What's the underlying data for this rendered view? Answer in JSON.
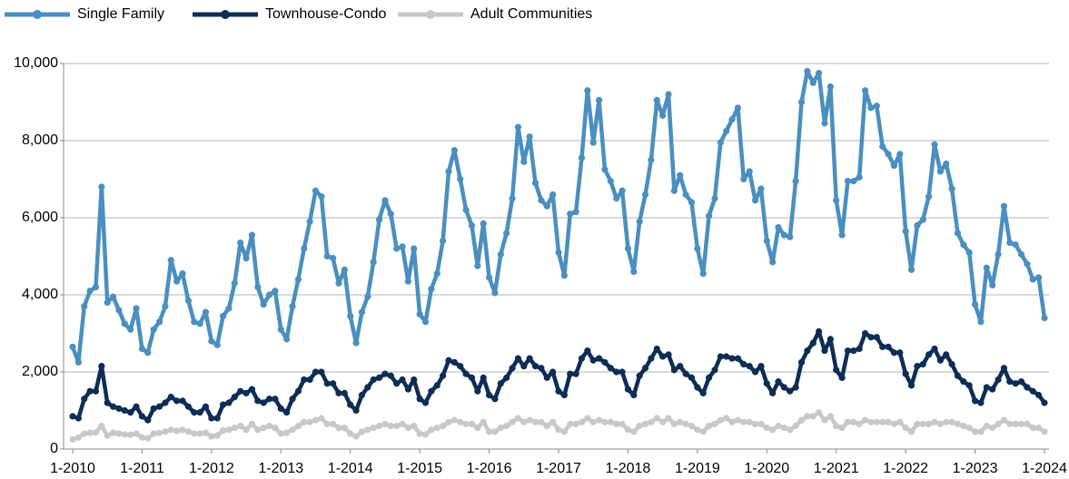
{
  "chart_data": {
    "type": "line",
    "legend": "top",
    "grid": true,
    "categories": [
      "1-2010",
      null,
      null,
      null,
      null,
      null,
      null,
      null,
      null,
      null,
      null,
      null,
      "1-2011",
      null,
      null,
      null,
      null,
      null,
      null,
      null,
      null,
      null,
      null,
      null,
      "1-2012",
      null,
      null,
      null,
      null,
      null,
      null,
      null,
      null,
      null,
      null,
      null,
      "1-2013",
      null,
      null,
      null,
      null,
      null,
      null,
      null,
      null,
      null,
      null,
      null,
      "1-2014",
      null,
      null,
      null,
      null,
      null,
      null,
      null,
      null,
      null,
      null,
      null,
      "1-2015",
      null,
      null,
      null,
      null,
      null,
      null,
      null,
      null,
      null,
      null,
      null,
      "1-2016",
      null,
      null,
      null,
      null,
      null,
      null,
      null,
      null,
      null,
      null,
      null,
      "1-2017",
      null,
      null,
      null,
      null,
      null,
      null,
      null,
      null,
      null,
      null,
      null,
      "1-2018",
      null,
      null,
      null,
      null,
      null,
      null,
      null,
      null,
      null,
      null,
      null,
      "1-2019",
      null,
      null,
      null,
      null,
      null,
      null,
      null,
      null,
      null,
      null,
      null,
      "1-2020",
      null,
      null,
      null,
      null,
      null,
      null,
      null,
      null,
      null,
      null,
      null,
      "1-2021",
      null,
      null,
      null,
      null,
      null,
      null,
      null,
      null,
      null,
      null,
      null,
      "1-2022",
      null,
      null,
      null,
      null,
      null,
      null,
      null,
      null,
      null,
      null,
      null,
      "1-2023",
      null,
      null,
      null,
      null,
      null,
      null,
      null,
      null,
      null,
      null,
      null,
      "1-2024"
    ],
    "ylim": [
      0,
      10000
    ],
    "yticks": [
      0,
      {
        "value": 2000,
        "label": "2,000"
      },
      {
        "value": 4000,
        "label": "4,000"
      },
      {
        "value": 6000,
        "label": "6,000"
      },
      {
        "value": 8000,
        "label": "8,000"
      },
      {
        "value": 10000,
        "label": "10,000"
      }
    ],
    "series": [
      {
        "name": "Single Family",
        "color": "#4a8fbf",
        "values": [
          2650,
          2250,
          3700,
          4100,
          4200,
          6800,
          3800,
          3950,
          3600,
          3250,
          3100,
          3650,
          2600,
          2500,
          3100,
          3300,
          3700,
          4900,
          4350,
          4550,
          3850,
          3300,
          3250,
          3550,
          2800,
          2700,
          3450,
          3650,
          4300,
          5350,
          4950,
          5550,
          4200,
          3750,
          4000,
          4100,
          3100,
          2850,
          3700,
          4400,
          5200,
          5900,
          6700,
          6550,
          5000,
          4950,
          4300,
          4650,
          3450,
          2750,
          3550,
          3950,
          4850,
          5950,
          6450,
          6100,
          5200,
          5250,
          4350,
          5200,
          3500,
          3300,
          4150,
          4550,
          5400,
          7200,
          7750,
          7000,
          6200,
          5800,
          4750,
          5850,
          4450,
          4050,
          5050,
          5600,
          6500,
          8350,
          7450,
          8100,
          6900,
          6450,
          6300,
          6600,
          5100,
          4500,
          6100,
          6150,
          7550,
          9300,
          7950,
          9050,
          7250,
          6950,
          6500,
          6700,
          5200,
          4600,
          5900,
          6600,
          7500,
          9050,
          8650,
          9200,
          6700,
          7100,
          6600,
          6400,
          5200,
          4550,
          6050,
          6500,
          7950,
          8250,
          8550,
          8850,
          7000,
          7200,
          6450,
          6750,
          5400,
          4850,
          5750,
          5550,
          5500,
          6950,
          9000,
          9800,
          9500,
          9750,
          8450,
          9400,
          6450,
          5550,
          6950,
          6950,
          7050,
          9300,
          8850,
          8900,
          7850,
          7650,
          7350,
          7650,
          5650,
          4650,
          5800,
          5950,
          6550,
          7900,
          7200,
          7400,
          6750,
          5600,
          5300,
          5100,
          3750,
          3300,
          4700,
          4250,
          5050,
          6300,
          5350,
          5300,
          5050,
          4800,
          4400,
          4450,
          3400
        ]
      },
      {
        "name": "Townhouse-Condo",
        "color": "#0d2d55",
        "values": [
          850,
          800,
          1300,
          1500,
          1500,
          2150,
          1200,
          1100,
          1050,
          1000,
          950,
          1100,
          850,
          750,
          1050,
          1100,
          1200,
          1350,
          1250,
          1250,
          1100,
          950,
          950,
          1100,
          800,
          800,
          1150,
          1200,
          1350,
          1500,
          1450,
          1550,
          1250,
          1200,
          1300,
          1300,
          1050,
          950,
          1300,
          1500,
          1800,
          1800,
          2000,
          2000,
          1700,
          1700,
          1450,
          1450,
          1150,
          1000,
          1400,
          1600,
          1800,
          1850,
          1950,
          1900,
          1700,
          1800,
          1550,
          1800,
          1300,
          1200,
          1500,
          1650,
          1900,
          2300,
          2250,
          2150,
          1950,
          1850,
          1500,
          1850,
          1400,
          1300,
          1700,
          1850,
          2100,
          2350,
          2150,
          2350,
          2150,
          2100,
          1850,
          2000,
          1500,
          1400,
          1950,
          1950,
          2350,
          2550,
          2300,
          2350,
          2250,
          2100,
          2000,
          2000,
          1550,
          1400,
          1900,
          2100,
          2350,
          2600,
          2400,
          2450,
          2050,
          2150,
          1950,
          1850,
          1600,
          1450,
          1850,
          2050,
          2400,
          2400,
          2350,
          2350,
          2200,
          2150,
          2000,
          2150,
          1700,
          1450,
          1750,
          1600,
          1500,
          1600,
          2250,
          2550,
          2750,
          3050,
          2550,
          2850,
          2050,
          1850,
          2550,
          2550,
          2600,
          3000,
          2900,
          2900,
          2650,
          2650,
          2500,
          2500,
          1950,
          1650,
          2150,
          2200,
          2450,
          2600,
          2300,
          2450,
          2200,
          1900,
          1750,
          1650,
          1250,
          1200,
          1600,
          1550,
          1800,
          2100,
          1750,
          1700,
          1750,
          1600,
          1500,
          1400,
          1200
        ]
      },
      {
        "name": "Adult Communities",
        "color": "#c8c8c8",
        "values": [
          250,
          300,
          400,
          420,
          430,
          600,
          350,
          420,
          400,
          380,
          370,
          400,
          300,
          280,
          400,
          420,
          450,
          500,
          470,
          500,
          450,
          400,
          400,
          420,
          330,
          350,
          480,
          500,
          550,
          600,
          500,
          650,
          500,
          550,
          600,
          550,
          400,
          420,
          500,
          600,
          700,
          700,
          750,
          800,
          650,
          650,
          550,
          550,
          400,
          330,
          450,
          500,
          550,
          600,
          650,
          600,
          600,
          650,
          550,
          600,
          400,
          380,
          500,
          550,
          600,
          700,
          750,
          700,
          650,
          650,
          550,
          700,
          450,
          450,
          550,
          600,
          700,
          800,
          700,
          750,
          700,
          700,
          600,
          700,
          500,
          450,
          650,
          650,
          700,
          800,
          700,
          750,
          700,
          700,
          650,
          650,
          500,
          450,
          600,
          650,
          700,
          800,
          700,
          800,
          650,
          700,
          650,
          600,
          500,
          450,
          600,
          650,
          750,
          800,
          700,
          750,
          700,
          700,
          650,
          650,
          550,
          500,
          600,
          550,
          500,
          600,
          750,
          850,
          850,
          950,
          750,
          850,
          600,
          550,
          700,
          700,
          650,
          750,
          700,
          700,
          700,
          700,
          650,
          700,
          550,
          450,
          650,
          650,
          650,
          700,
          650,
          700,
          700,
          650,
          600,
          550,
          450,
          450,
          600,
          550,
          650,
          750,
          650,
          650,
          650,
          650,
          550,
          550,
          450
        ]
      }
    ]
  }
}
